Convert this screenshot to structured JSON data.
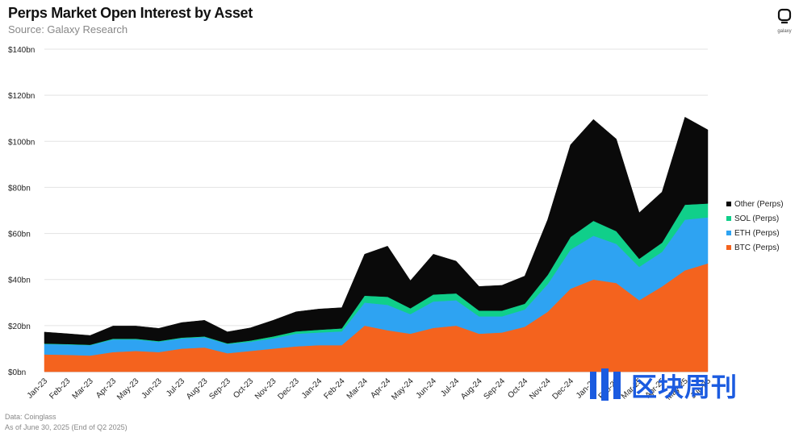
{
  "header": {
    "title": "Perps Market Open Interest by Asset",
    "subtitle": "Source: Galaxy Research"
  },
  "logo": {
    "text": "galaxy"
  },
  "footer": {
    "line1": "Data: Coinglass",
    "line2": "As of June 30, 2025 (End of Q2 2025)"
  },
  "watermark": {
    "text": "区块周刊"
  },
  "colors": {
    "btc": "#f4631e",
    "eth": "#2ea3f2",
    "sol": "#10cf8a",
    "other": "#0a0a0a",
    "grid": "#e3e3e3",
    "watermark": "#1b5be0"
  },
  "chart_data": {
    "type": "area",
    "stacked": true,
    "title": "Perps Market Open Interest by Asset",
    "subtitle": "Source: Galaxy Research",
    "ylim": [
      0,
      140
    ],
    "yticks": [
      0,
      20,
      40,
      60,
      80,
      100,
      120,
      140
    ],
    "ytick_labels": [
      "$0bn",
      "$20bn",
      "$40bn",
      "$60bn",
      "$80bn",
      "$100bn",
      "$120bn",
      "$140bn"
    ],
    "xtick_labels": [
      "Jan-23",
      "Feb-23",
      "Mar-23",
      "Apr-23",
      "May-23",
      "Jun-23",
      "Jul-23",
      "Aug-23",
      "Sep-23",
      "Oct-23",
      "Nov-23",
      "Dec-23",
      "Jan-24",
      "Feb-24",
      "Mar-24",
      "Apr-24",
      "May-24",
      "Jun-24",
      "Jul-24",
      "Aug-24",
      "Sep-24",
      "Oct-24",
      "Nov-24",
      "Dec-24",
      "Jan-25",
      "Feb-25",
      "Mar-25",
      "Apr-25",
      "May-25",
      "Jun-25"
    ],
    "legend_position": "right",
    "grid": true,
    "series": [
      {
        "name": "BTC (Perps)",
        "key": "btc",
        "values": [
          7.5,
          7.3,
          7.0,
          8.5,
          9.0,
          8.5,
          10.0,
          10.5,
          8.0,
          9.0,
          10.0,
          11.0,
          11.5,
          11.5,
          20.0,
          18.0,
          16.5,
          19.0,
          20.0,
          16.5,
          17.0,
          19.5,
          26.0,
          36.0,
          40.0,
          38.5,
          31.0,
          37.0,
          44.0,
          47.0
        ]
      },
      {
        "name": "ETH (Perps)",
        "key": "eth",
        "values": [
          4.5,
          4.5,
          4.5,
          5.5,
          5.0,
          4.5,
          4.5,
          4.5,
          4.0,
          4.0,
          4.5,
          5.5,
          5.5,
          6.0,
          10.0,
          11.0,
          8.5,
          11.5,
          11.0,
          7.5,
          7.0,
          7.5,
          12.0,
          17.0,
          19.0,
          17.0,
          14.5,
          15.0,
          22.0,
          20.0
        ]
      },
      {
        "name": "SOL (Perps)",
        "key": "sol",
        "values": [
          0.2,
          0.2,
          0.2,
          0.3,
          0.3,
          0.3,
          0.3,
          0.3,
          0.3,
          0.5,
          0.8,
          1.0,
          1.2,
          1.3,
          3.0,
          3.5,
          2.5,
          3.0,
          3.0,
          2.5,
          2.5,
          2.5,
          4.0,
          5.5,
          6.5,
          5.5,
          3.5,
          4.0,
          6.5,
          6.0
        ]
      },
      {
        "name": "Other (Perps)",
        "key": "other",
        "values": [
          5.0,
          4.5,
          4.0,
          5.5,
          5.5,
          5.5,
          6.5,
          7.0,
          5.0,
          5.5,
          7.0,
          8.5,
          9.0,
          9.0,
          18.0,
          22.0,
          12.0,
          17.5,
          14.0,
          10.5,
          11.0,
          12.0,
          24.0,
          40.0,
          44.0,
          40.0,
          20.0,
          22.0,
          38.0,
          32.0
        ]
      }
    ]
  }
}
